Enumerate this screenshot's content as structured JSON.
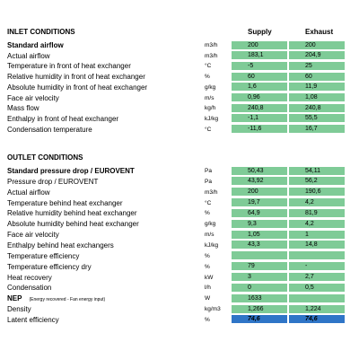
{
  "columns": [
    "Supply",
    "Exhaust"
  ],
  "sections": [
    {
      "title": "INLET CONDITIONS",
      "rows": [
        {
          "label": "Standard airflow",
          "unit": "m3/h",
          "supply": "200",
          "exhaust": "200",
          "bold": true
        },
        {
          "label": "Actual airflow",
          "unit": "m3/h",
          "supply": "183,1",
          "exhaust": "204,9"
        },
        {
          "label": "Temperature in front of heat exchanger",
          "unit": "°C",
          "supply": "-5",
          "exhaust": "25"
        },
        {
          "label": "Relative humidity in front of heat exchanger",
          "unit": "%",
          "supply": "60",
          "exhaust": "60"
        },
        {
          "label": "Absolute humidity in front of heat exchanger",
          "unit": "g/kg",
          "supply": "1,6",
          "exhaust": "11,9"
        },
        {
          "label": "Face air velocity",
          "unit": "m/s",
          "supply": "0,96",
          "exhaust": "1,08"
        },
        {
          "label": "Mass flow",
          "unit": "kg/h",
          "supply": "240,8",
          "exhaust": "240,8"
        },
        {
          "label": "Enthalpy in front of heat exchanger",
          "unit": "kJ/kg",
          "supply": "-1,1",
          "exhaust": "55,5"
        },
        {
          "label": "Condensation temperature",
          "unit": "°C",
          "supply": "-11,6",
          "exhaust": "16,7"
        }
      ]
    },
    {
      "title": "OUTLET CONDITIONS",
      "rows": [
        {
          "label": "Standard pressure drop  / EUROVENT",
          "unit": "Pa",
          "supply": "50,43",
          "exhaust": "54,11",
          "bold": true
        },
        {
          "label": "Pressure drop  / EUROVENT",
          "unit": "Pa",
          "supply": "43,92",
          "exhaust": "56,2"
        },
        {
          "label": "Actual airflow",
          "unit": "m3/h",
          "supply": "200",
          "exhaust": "190,6"
        },
        {
          "label": "Temperature behind heat exchanger",
          "unit": "°C",
          "supply": "19,7",
          "exhaust": "4,2"
        },
        {
          "label": "Relative humidity behind heat exchanger",
          "unit": "%",
          "supply": "64,9",
          "exhaust": "81,9"
        },
        {
          "label": "Absolute humidity behind heat exchanger",
          "unit": "g/kg",
          "supply": "9,3",
          "exhaust": "4,2"
        },
        {
          "label": "Face air velocity",
          "unit": "m/s",
          "supply": "1,05",
          "exhaust": "1"
        },
        {
          "label": "Enthalpy behind heat exchangers",
          "unit": "kJ/kg",
          "supply": "43,3",
          "exhaust": "14,8"
        },
        {
          "label": "Temperature efficiency",
          "unit": "%",
          "supply": null,
          "exhaust": null
        },
        {
          "label": "Temperature efficiency dry",
          "unit": "%",
          "supply": "79",
          "exhaust": "-"
        },
        {
          "label": "Heat recovery",
          "unit": "kW",
          "supply": "3",
          "exhaust": "2,7"
        },
        {
          "label": "Condensation",
          "unit": "l/h",
          "supply": "0",
          "exhaust": "0,5"
        },
        {
          "label": "NEP",
          "note": "(Energy recovered - Fan energy input)",
          "unit": "W",
          "supply": "1633",
          "exhaust": null,
          "bold": true
        },
        {
          "label": "Density",
          "unit": "kg/m3",
          "supply": "1,266",
          "exhaust": "1,224"
        },
        {
          "label": "Latent efficiency",
          "unit": "%",
          "supply": "74,6",
          "exhaust": "74,6",
          "highlight": true
        }
      ]
    }
  ]
}
